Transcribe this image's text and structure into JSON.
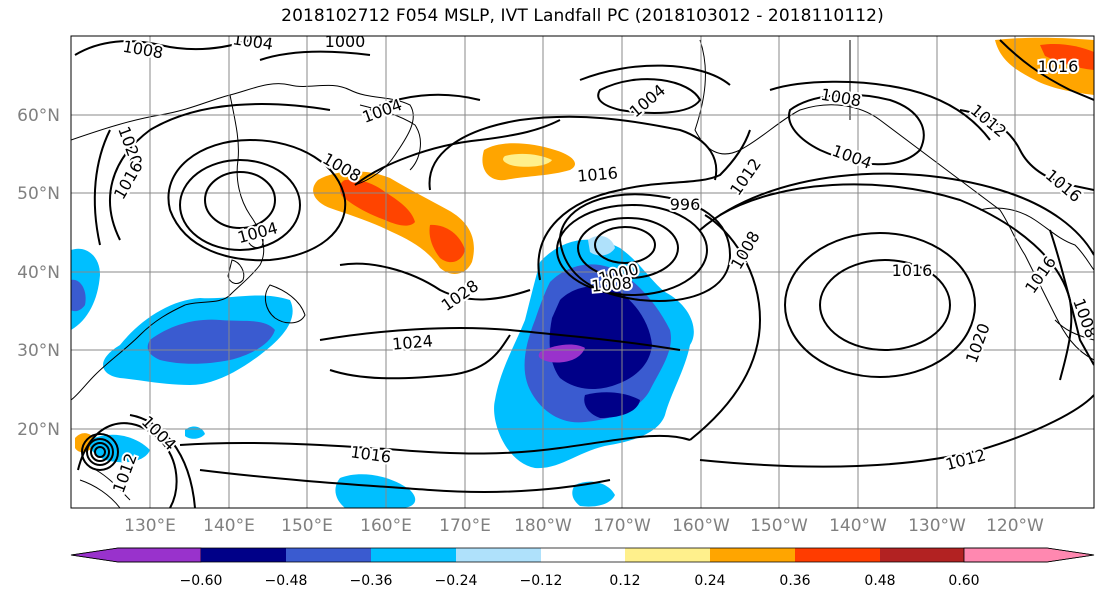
{
  "title": "2018102712 F054 MSLP, IVT Landfall PC (2018103012 - 2018110112)",
  "lat_labels": [
    "60°N",
    "50°N",
    "40°N",
    "30°N",
    "20°N"
  ],
  "lon_labels": [
    "130°E",
    "140°E",
    "150°E",
    "160°E",
    "170°E",
    "180°W",
    "170°W",
    "160°W",
    "150°W",
    "140°W",
    "130°W",
    "120°W"
  ],
  "colorbar": {
    "ticks": [
      "−0.60",
      "−0.48",
      "−0.36",
      "−0.24",
      "−0.12",
      "0.12",
      "0.24",
      "0.36",
      "0.48",
      "0.60"
    ],
    "colors": [
      "#9932cc",
      "#000088",
      "#3a5bd0",
      "#00bfff",
      "#afe1fb",
      "#ffffff",
      "#fff08c",
      "#ffa500",
      "#ff3c00",
      "#b22222",
      "#ff88b0"
    ]
  },
  "contour_labels": [
    "1008",
    "1004",
    "1000",
    "1020",
    "1016",
    "1004",
    "1008",
    "1004",
    "1016",
    "1004",
    "1012",
    "1008",
    "1004",
    "1016",
    "1012",
    "1008",
    "996",
    "1000",
    "1008",
    "1028",
    "1016",
    "1024",
    "1020",
    "1016",
    "1008",
    "1004",
    "1012",
    "1016",
    "1012",
    "1016"
  ]
}
